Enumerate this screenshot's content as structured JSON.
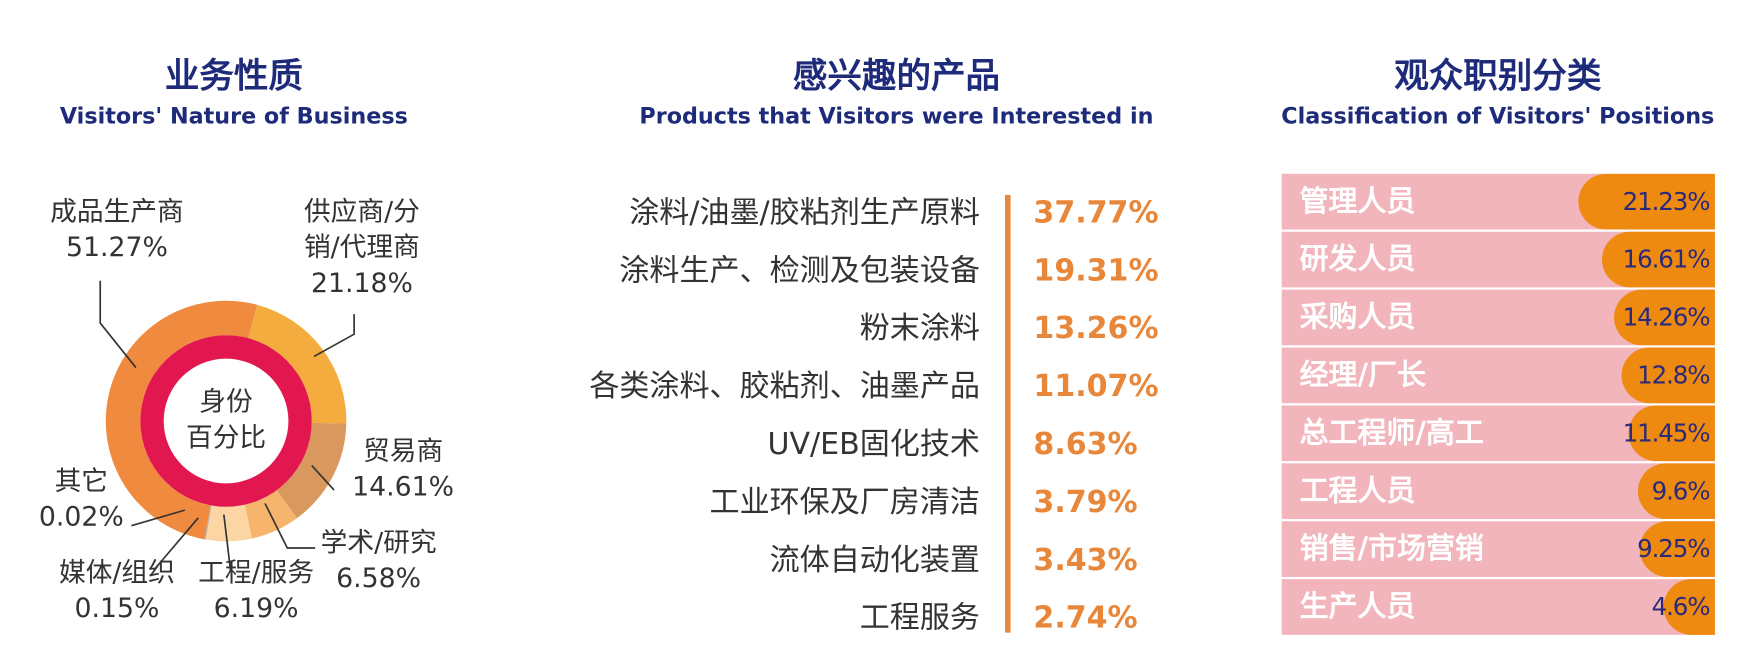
{
  "chart_data": [
    {
      "type": "pie",
      "title": "业务性质",
      "subtitle": "Visitors' Nature of Business",
      "center_label": [
        "身份",
        "百分比"
      ],
      "categories": [
        "成品生产商",
        "供应商/分销/代理商",
        "贸易商",
        "学术/研究",
        "工程/服务",
        "媒体/组织",
        "其它"
      ],
      "values": [
        51.27,
        21.18,
        14.61,
        6.58,
        6.19,
        0.15,
        0.02
      ],
      "value_labels": [
        "51.27%",
        "21.18%",
        "14.61%",
        "6.58%",
        "6.19%",
        "0.15%",
        "0.02%"
      ],
      "colors": [
        "#ef8a3e",
        "#f4ac3e",
        "#d9995e",
        "#f7b46c",
        "#fbd5a3",
        "#b3aaa0",
        "#9a9a9a"
      ],
      "inner_color": "#e2174f"
    },
    {
      "type": "list",
      "title": "感兴趣的产品",
      "subtitle": "Products that Visitors were Interested in",
      "categories": [
        "涂料/油墨/胶粘剂生产原料",
        "涂料生产、检测及包装设备",
        "粉末涂料",
        "各类涂料、胶粘剂、油墨产品",
        "UV/EB固化技术",
        "工业环保及厂房清洁",
        "流体自动化装置",
        "工程服务"
      ],
      "values": [
        37.77,
        19.31,
        13.26,
        11.07,
        8.63,
        3.79,
        3.43,
        2.74
      ],
      "value_labels": [
        "37.77%",
        "19.31%",
        "13.26%",
        "11.07%",
        "8.63%",
        "3.79%",
        "3.43%",
        "2.74%"
      ],
      "color": "#e8873a"
    },
    {
      "type": "bar",
      "title": "观众职别分类",
      "subtitle": "Classification of Visitors' Positions",
      "categories": [
        "管理人员",
        "研发人员",
        "采购人员",
        "经理/厂长",
        "总工程师/高工",
        "工程人员",
        "销售/市场营销",
        "生产人员"
      ],
      "values": [
        21.23,
        16.61,
        14.26,
        12.8,
        11.45,
        9.6,
        9.25,
        4.6
      ],
      "value_labels": [
        "21.23%",
        "16.61%",
        "14.26%",
        "12.8%",
        "11.45%",
        "9.6%",
        "9.25%",
        "4.6%"
      ],
      "color": "#ef8a10",
      "row_color": "#f2b5bc"
    }
  ]
}
